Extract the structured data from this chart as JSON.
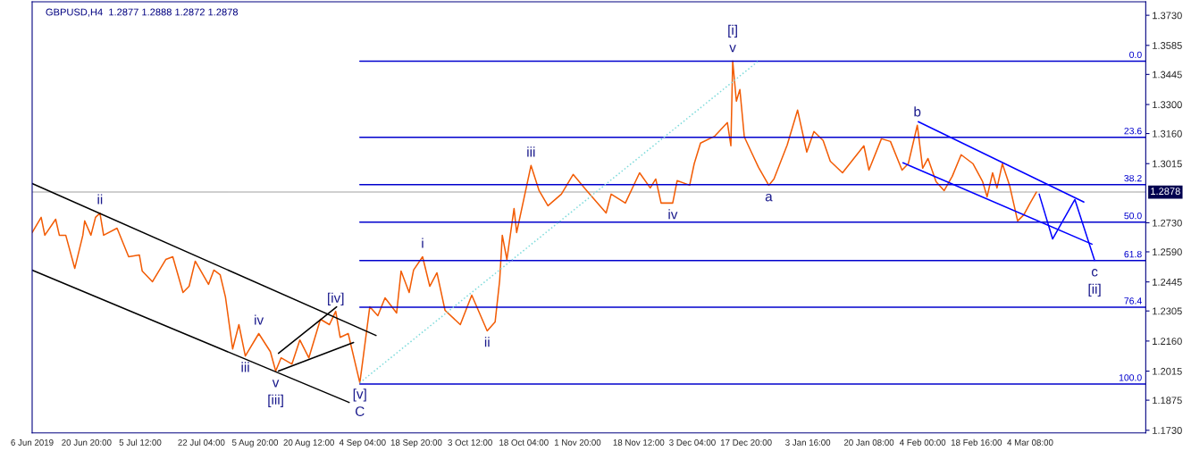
{
  "chart_data": {
    "type": "line",
    "title": "GBPUSD,H4  1.2877 1.2888 1.2872 1.2878",
    "xlim": [
      "2019-06-06T00:00",
      "2020-04-04T21:00"
    ],
    "ylim": [
      1.1717,
      1.3795
    ],
    "xticks": [
      {
        "value": "2019-06-06T00:00",
        "label": "6 Jun 2019"
      },
      {
        "value": "2019-06-20T20:00",
        "label": "20 Jun 20:00"
      },
      {
        "value": "2019-07-05T12:00",
        "label": "5 Jul 12:00"
      },
      {
        "value": "2019-07-22T04:00",
        "label": "22 Jul 04:00"
      },
      {
        "value": "2019-08-05T20:00",
        "label": "5 Aug 20:00"
      },
      {
        "value": "2019-08-20T12:00",
        "label": "20 Aug 12:00"
      },
      {
        "value": "2019-09-04T04:00",
        "label": "4 Sep 04:00"
      },
      {
        "value": "2019-09-18T20:00",
        "label": "18 Sep 20:00"
      },
      {
        "value": "2019-10-03T12:00",
        "label": "3 Oct 12:00"
      },
      {
        "value": "2019-10-18T04:00",
        "label": "18 Oct 04:00"
      },
      {
        "value": "2019-11-01T20:00",
        "label": "1 Nov 20:00"
      },
      {
        "value": "2019-11-18T12:00",
        "label": "18 Nov 12:00"
      },
      {
        "value": "2019-12-03T04:00",
        "label": "3 Dec 04:00"
      },
      {
        "value": "2019-12-17T20:00",
        "label": "17 Dec 20:00"
      },
      {
        "value": "2020-01-03T16:00",
        "label": "3 Jan 16:00"
      },
      {
        "value": "2020-01-20T08:00",
        "label": "20 Jan 08:00"
      },
      {
        "value": "2020-02-04T00:00",
        "label": "4 Feb 00:00"
      },
      {
        "value": "2020-02-18T16:00",
        "label": "18 Feb 16:00"
      },
      {
        "value": "2020-03-04T08:00",
        "label": "4 Mar 08:00"
      }
    ],
    "yticks": [
      {
        "value": 1.173,
        "label": "1.1730"
      },
      1.1875,
      1.2015,
      {
        "value": 1.216,
        "label": "1.2160"
      },
      1.2305,
      1.2445,
      {
        "value": 1.259,
        "label": "1.2590"
      },
      {
        "value": 1.273,
        "label": "1.2730"
      },
      1.3015,
      {
        "value": 1.316,
        "label": "1.3160"
      },
      {
        "value": 1.33,
        "label": "1.3300"
      },
      1.3445,
      1.3585,
      {
        "value": 1.373,
        "label": "1.3730"
      }
    ],
    "grid": false,
    "legend": false,
    "ref_lines": [
      {
        "axis": "y",
        "value": 1.2878,
        "label": "1.2878",
        "color": "#c0c0c0"
      }
    ],
    "series": [
      {
        "color": "#f25c05",
        "x": [
          "2019-06-06T00:00",
          "2019-06-08T11:00",
          "2019-06-09T11:00",
          "2019-06-12T10:00",
          "2019-06-13T10:00",
          "2019-06-15T04:00",
          "2019-06-17T15:00",
          "2019-06-19T20:00",
          "2019-06-20T08:00",
          "2019-06-22T01:00",
          "2019-06-23T07:00",
          "2019-06-24T12:00",
          "2019-06-25T12:00",
          "2019-06-29T04:00",
          "2019-07-02T08:00",
          "2019-07-05T06:00",
          "2019-07-06T01:00",
          "2019-07-08T20:00",
          "2019-07-12T11:00",
          "2019-07-14T09:00",
          "2019-07-17T04:00",
          "2019-07-18T20:00",
          "2019-07-20T12:00",
          "2019-07-24T03:00",
          "2019-07-25T14:00",
          "2019-07-27T07:00",
          "2019-07-28T18:00",
          "2019-07-30T17:00",
          "2019-08-01T10:00",
          "2019-08-03T04:00",
          "2019-08-06T20:00",
          "2019-08-10T00:00",
          "2019-08-11T11:00",
          "2019-08-12T22:00",
          "2019-08-15T21:00",
          "2019-08-18T01:00",
          "2019-08-20T12:00",
          "2019-08-23T16:00",
          "2019-08-26T03:00",
          "2019-08-27T20:00",
          "2019-08-29T01:00",
          "2019-08-31T06:00",
          "2019-09-03T10:00",
          "2019-09-04T10:00",
          "2019-09-06T03:00",
          "2019-09-08T08:00",
          "2019-09-10T07:00",
          "2019-09-13T11:00",
          "2019-09-14T16:00",
          "2019-09-16T21:00",
          "2019-09-18T02:00",
          "2019-09-20T13:00",
          "2019-09-22T12:00",
          "2019-09-24T11:00",
          "2019-09-26T16:00",
          "2019-09-30T20:00",
          "2019-10-03T23:00",
          "2019-10-08T04:00",
          "2019-10-10T08:00",
          "2019-10-11T14:00",
          "2019-10-12T07:00",
          "2019-10-13T13:00",
          "2019-10-15T12:00",
          "2019-10-16T05:00",
          "2019-10-20T03:00",
          "2019-10-22T08:00",
          "2019-10-24T18:00",
          "2019-10-28T10:00",
          "2019-10-31T15:00",
          "2019-11-04T08:00",
          "2019-11-09T15:00",
          "2019-11-11T00:00",
          "2019-11-14T21:00",
          "2019-11-18T18:00",
          "2019-11-21T16:00",
          "2019-11-23T04:00",
          "2019-11-24T15:00",
          "2019-11-27T19:00",
          "2019-11-29T00:00",
          "2019-12-02T10:00",
          "2019-12-03T16:00",
          "2019-12-05T09:00",
          "2019-12-09T07:00",
          "2019-12-12T17:00",
          "2019-12-13T16:00",
          "2019-12-14T04:00",
          "2019-12-15T04:00",
          "2019-12-16T03:00",
          "2019-12-17T08:00",
          "2019-12-19T06:00",
          "2019-12-21T05:00",
          "2019-12-24T00:00",
          "2019-12-25T10:00",
          "2019-12-29T01:00",
          "2019-12-31T21:00",
          "2020-01-03T09:00",
          "2020-01-05T08:00",
          "2020-01-07T20:00",
          "2020-01-09T19:00",
          "2020-01-13T03:00",
          "2020-01-18T23:00",
          "2020-01-20T08:00",
          "2020-01-23T18:00",
          "2020-01-26T05:00",
          "2020-01-29T09:00",
          "2020-01-31T02:00",
          "2020-02-02T13:00",
          "2020-02-04T00:00",
          "2020-02-05T11:00",
          "2020-02-07T16:00",
          "2020-02-09T21:00",
          "2020-02-12T02:00",
          "2020-02-14T12:00",
          "2020-02-17T17:00",
          "2020-02-20T09:00",
          "2020-02-21T14:00",
          "2020-02-23T02:00",
          "2020-02-24T07:00",
          "2020-02-25T18:00",
          "2020-02-27T17:00",
          "2020-02-29T22:00",
          "2020-03-02T15:00",
          "2020-03-04T08:00",
          "2020-03-06T01:00"
        ],
        "values": [
          1.2683,
          1.2756,
          1.267,
          1.2747,
          1.267,
          1.267,
          1.251,
          1.267,
          1.2739,
          1.267,
          1.2756,
          1.2777,
          1.267,
          1.2704,
          1.2566,
          1.2575,
          1.2497,
          1.2446,
          1.2553,
          1.2566,
          1.2394,
          1.2424,
          1.2545,
          1.2433,
          1.2502,
          1.248,
          1.2372,
          1.2122,
          1.2239,
          1.2088,
          1.2196,
          1.2109,
          1.2015,
          1.2079,
          1.2049,
          1.2165,
          1.2079,
          1.2265,
          1.2239,
          1.2303,
          1.2178,
          1.2196,
          1.1959,
          1.2092,
          1.2325,
          1.2282,
          1.2368,
          1.2295,
          1.2497,
          1.2394,
          1.2502,
          1.2566,
          1.2424,
          1.2489,
          1.2308,
          1.2239,
          1.2381,
          1.2209,
          1.2252,
          1.2454,
          1.267,
          1.2553,
          1.2799,
          1.2683,
          1.3006,
          1.2885,
          1.2812,
          1.2868,
          1.2963,
          1.2885,
          1.2777,
          1.2868,
          1.2825,
          1.2971,
          1.2898,
          1.2941,
          1.2825,
          1.2825,
          1.2933,
          1.2911,
          1.3015,
          1.3114,
          1.3148,
          1.3213,
          1.3101,
          1.351,
          1.3316,
          1.3372,
          1.3144,
          1.3071,
          1.2997,
          1.2911,
          1.2941,
          1.3105,
          1.3273,
          1.3071,
          1.317,
          1.3127,
          1.3027,
          1.2971,
          1.3101,
          1.2984,
          1.3135,
          1.3122,
          1.2984,
          1.3015,
          1.32,
          1.2993,
          1.304,
          1.2928,
          1.2885,
          1.2954,
          1.3058,
          1.3015,
          1.2928,
          1.2855,
          1.2971,
          1.2898,
          1.3015,
          1.2911,
          1.2739,
          1.2769,
          1.2825,
          1.2878
        ]
      },
      {
        "name": "0.0",
        "color": "#0000cd",
        "x": [
          "2019-09-03T10:00",
          "2020-04-04T21:00"
        ],
        "values": [
          1.3509,
          1.3509
        ]
      },
      {
        "name": "23.6",
        "color": "#0000cd",
        "x": [
          "2019-09-03T10:00",
          "2020-04-04T21:00"
        ],
        "values": [
          1.3142,
          1.3142
        ]
      },
      {
        "name": "38.2",
        "color": "#0000cd",
        "x": [
          "2019-09-03T10:00",
          "2020-04-04T21:00"
        ],
        "values": [
          1.2914,
          1.2914
        ]
      },
      {
        "name": "50.0",
        "color": "#0000cd",
        "x": [
          "2019-09-03T10:00",
          "2020-04-04T21:00"
        ],
        "values": [
          1.2733,
          1.2733
        ]
      },
      {
        "name": "61.8",
        "color": "#0000cd",
        "x": [
          "2019-09-03T10:00",
          "2020-04-04T21:00"
        ],
        "values": [
          1.2548,
          1.2548
        ]
      },
      {
        "name": "76.4",
        "color": "#0000cd",
        "x": [
          "2019-09-03T10:00",
          "2020-04-04T21:00"
        ],
        "values": [
          1.2323,
          1.2323
        ]
      },
      {
        "name": "100.0",
        "color": "#0000cd",
        "x": [
          "2019-09-03T10:00",
          "2020-04-04T21:00"
        ],
        "values": [
          1.1953,
          1.1953
        ]
      },
      {
        "color": "#000000",
        "x": [
          "2019-06-06T00:00",
          "2019-09-07T20:00"
        ],
        "values": [
          1.2919,
          1.2187
        ]
      },
      {
        "color": "#000000",
        "x": [
          "2019-06-06T00:00",
          "2019-08-31T12:00"
        ],
        "values": [
          1.2502,
          1.1864
        ]
      },
      {
        "color": "#000000",
        "x": [
          "2019-08-12T05:00",
          "2019-08-28T02:00"
        ],
        "values": [
          1.2101,
          1.2325
        ]
      },
      {
        "color": "#000000",
        "x": [
          "2019-08-12T05:00",
          "2019-09-01T17:00"
        ],
        "values": [
          1.2015,
          1.2153
        ]
      },
      {
        "color": "#7fdbdb",
        "line_style": "dotted",
        "x": [
          "2019-09-03T10:00",
          "2019-12-21T05:00"
        ],
        "values": [
          1.1959,
          1.351
        ]
      },
      {
        "color": "#0000ff",
        "x": [
          "2020-02-02T19:00",
          "2020-03-19T00:00"
        ],
        "values": [
          1.3217,
          1.283
        ]
      },
      {
        "color": "#0000ff",
        "x": [
          "2020-01-29T15:00",
          "2020-03-21T05:00"
        ],
        "values": [
          1.3019,
          1.2627
        ]
      },
      {
        "color": "#0000ff",
        "x": [
          "2020-03-06T19:00",
          "2020-03-10T11:00",
          "2020-03-16T13:00",
          "2020-03-21T22:00"
        ],
        "values": [
          1.2868,
          1.2652,
          1.2842,
          1.2549
        ]
      }
    ],
    "annotations": [
      {
        "text": "ii",
        "x": "2019-06-24T12:00",
        "y": 1.2777
      },
      {
        "text": "iii",
        "x": "2019-08-03T04:00",
        "y": 1.2088
      },
      {
        "text": "iv",
        "x": "2019-08-06T20:00",
        "y": 1.2196
      },
      {
        "text": "v",
        "x": "2019-08-11T11:00",
        "y": 1.2015
      },
      {
        "text": "[iii]",
        "x": "2019-08-11T11:00",
        "y": 1.2015
      },
      {
        "text": "[iv]",
        "x": "2019-08-27T20:00",
        "y": 1.2303
      },
      {
        "text": "[v]",
        "x": "2019-09-03T10:00",
        "y": 1.1959
      },
      {
        "text": "C",
        "x": "2019-09-03T10:00",
        "y": 1.1959
      },
      {
        "text": "i",
        "x": "2019-09-20T13:00",
        "y": 1.2566
      },
      {
        "text": "ii",
        "x": "2019-10-08T04:00",
        "y": 1.2209
      },
      {
        "text": "iii",
        "x": "2019-10-20T03:00",
        "y": 1.3006
      },
      {
        "text": "iv",
        "x": "2019-11-27T19:00",
        "y": 1.2825
      },
      {
        "text": "v",
        "x": "2019-12-14T04:00",
        "y": 1.351
      },
      {
        "text": "[i]",
        "x": "2019-12-14T04:00",
        "y": 1.351
      },
      {
        "text": "a",
        "x": "2019-12-24T00:00",
        "y": 1.2911
      },
      {
        "text": "b",
        "x": "2020-02-02T13:00",
        "y": 1.32
      },
      {
        "text": "c",
        "x": "2020-03-21T22:00",
        "y": 1.2549
      },
      {
        "text": "[ii]",
        "x": "2020-03-21T22:00",
        "y": 1.2549
      }
    ]
  }
}
